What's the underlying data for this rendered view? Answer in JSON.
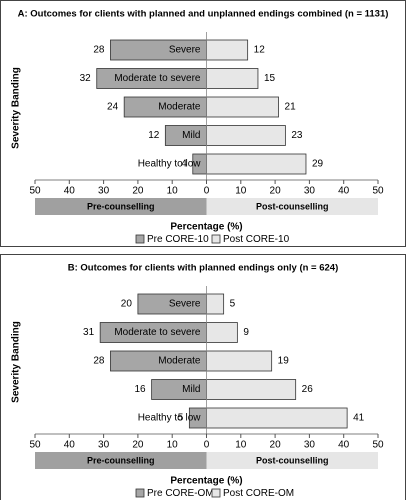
{
  "chart_data": [
    {
      "type": "bar",
      "title": "A: Outcomes for clients with planned and unplanned endings combined (n = 1131)",
      "y_label": "Severity Banding",
      "x_label": "Percentage (%)",
      "categories": [
        "Severe",
        "Moderate to severe",
        "Moderate",
        "Mild",
        "Healthy to low"
      ],
      "series": [
        {
          "name": "Pre CORE-10",
          "color": "#a6a6a6",
          "values": [
            28,
            32,
            24,
            12,
            4
          ]
        },
        {
          "name": "Post CORE-10",
          "color": "#e7e7e7",
          "values": [
            12,
            15,
            21,
            23,
            29
          ]
        }
      ],
      "xlim": [
        -50,
        50
      ],
      "xticks": [
        {
          "value": -50,
          "label": "50"
        },
        {
          "value": -40,
          "label": "40"
        },
        {
          "value": -30,
          "label": "30"
        },
        {
          "value": -20,
          "label": "20"
        },
        {
          "value": -10,
          "label": "10"
        },
        0,
        10,
        20,
        30,
        40,
        50
      ],
      "bands": [
        {
          "label": "Pre-counselling",
          "color": "#a0a0a0"
        },
        {
          "label": "Post-counselling",
          "color": "#e6e6e6"
        }
      ]
    },
    {
      "type": "bar",
      "title": "B: Outcomes for clients with planned endings only (n = 624)",
      "y_label": "Severity Banding",
      "x_label": "Percentage (%)",
      "categories": [
        "Severe",
        "Moderate to severe",
        "Moderate",
        "Mild",
        "Healthy to low"
      ],
      "series": [
        {
          "name": "Pre CORE-OM",
          "color": "#a6a6a6",
          "values": [
            20,
            31,
            28,
            16,
            5
          ]
        },
        {
          "name": "Post CORE-OM",
          "color": "#e7e7e7",
          "values": [
            5,
            9,
            19,
            26,
            41
          ]
        }
      ],
      "xlim": [
        -50,
        50
      ],
      "xticks": [
        {
          "value": -50,
          "label": "50"
        },
        {
          "value": -40,
          "label": "40"
        },
        {
          "value": -30,
          "label": "30"
        },
        {
          "value": -20,
          "label": "20"
        },
        {
          "value": -10,
          "label": "10"
        },
        0,
        10,
        20,
        30,
        40,
        50
      ],
      "bands": [
        {
          "label": "Pre-counselling",
          "color": "#a0a0a0"
        },
        {
          "label": "Post-counselling",
          "color": "#e6e6e6"
        }
      ]
    }
  ]
}
